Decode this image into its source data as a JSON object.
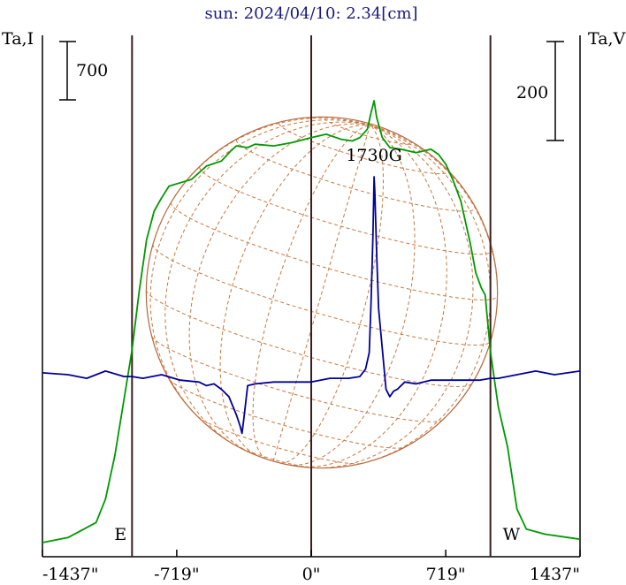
{
  "chart_data": {
    "type": "line",
    "title": "sun: 2024/04/10: 2.34[cm]",
    "left_axis_label": "Ta,I",
    "right_axis_label": "Ta,V",
    "scale_bar_left": "700",
    "scale_bar_right": "200",
    "x_unit": "arcsec",
    "xlim": [
      -1437,
      1437
    ],
    "x_ticks": [
      -1437,
      -719,
      0,
      719,
      1437
    ],
    "x_tick_labels": [
      "-1437\"",
      "-719\"",
      "0\"",
      "719\"",
      "1437\""
    ],
    "limb_markers": [
      {
        "label": "E",
        "x": -958
      },
      {
        "label": "W",
        "x": 958
      }
    ],
    "annotations": [
      {
        "text": "1730G",
        "x": 336
      }
    ],
    "series": [
      {
        "color": "#009900",
        "x": [
          -1437,
          -1300,
          -1150,
          -1100,
          -1050,
          -1000,
          -958,
          -920,
          -880,
          -840,
          -800,
          -760,
          -700,
          -640,
          -560,
          -480,
          -430,
          -400,
          -340,
          -300,
          -200,
          -100,
          0,
          80,
          160,
          220,
          260,
          300,
          320,
          336,
          350,
          380,
          420,
          480,
          560,
          640,
          680,
          720,
          760,
          800,
          850,
          880,
          910,
          930,
          958,
          1000,
          1050,
          1100,
          1150,
          1250,
          1437
        ],
        "y": [
          0,
          30,
          120,
          260,
          520,
          860,
          1150,
          1500,
          1810,
          1980,
          2060,
          2130,
          2150,
          2170,
          2250,
          2280,
          2340,
          2370,
          2360,
          2380,
          2370,
          2390,
          2420,
          2440,
          2410,
          2400,
          2420,
          2470,
          2570,
          2640,
          2540,
          2420,
          2360,
          2350,
          2330,
          2350,
          2320,
          2260,
          2160,
          2040,
          1790,
          1610,
          1520,
          1480,
          1140,
          810,
          570,
          200,
          80,
          50,
          20
        ]
      },
      {
        "color": "#000099",
        "x": [
          -1437,
          -1300,
          -1200,
          -1100,
          -1000,
          -958,
          -900,
          -800,
          -700,
          -600,
          -560,
          -520,
          -480,
          -440,
          -400,
          -380,
          -370,
          -360,
          -340,
          -300,
          -200,
          -100,
          0,
          100,
          200,
          260,
          290,
          310,
          320,
          330,
          336,
          340,
          350,
          360,
          380,
          400,
          420,
          440,
          460,
          500,
          560,
          640,
          720,
          800,
          900,
          958,
          1000,
          1100,
          1200,
          1300,
          1437
        ],
        "y": [
          5,
          0,
          -10,
          10,
          -5,
          -5,
          -10,
          0,
          -15,
          -20,
          -30,
          -25,
          -40,
          -60,
          -110,
          -140,
          -160,
          -120,
          -30,
          -25,
          -20,
          -20,
          -20,
          -10,
          -10,
          -5,
          15,
          60,
          200,
          380,
          540,
          500,
          330,
          180,
          70,
          -40,
          -60,
          -45,
          -40,
          -20,
          -25,
          -15,
          -15,
          -15,
          -15,
          -10,
          -10,
          0,
          10,
          0,
          10
        ]
      }
    ],
    "disk": {
      "radius_arcsec": 958,
      "grid": "heliographic"
    }
  }
}
